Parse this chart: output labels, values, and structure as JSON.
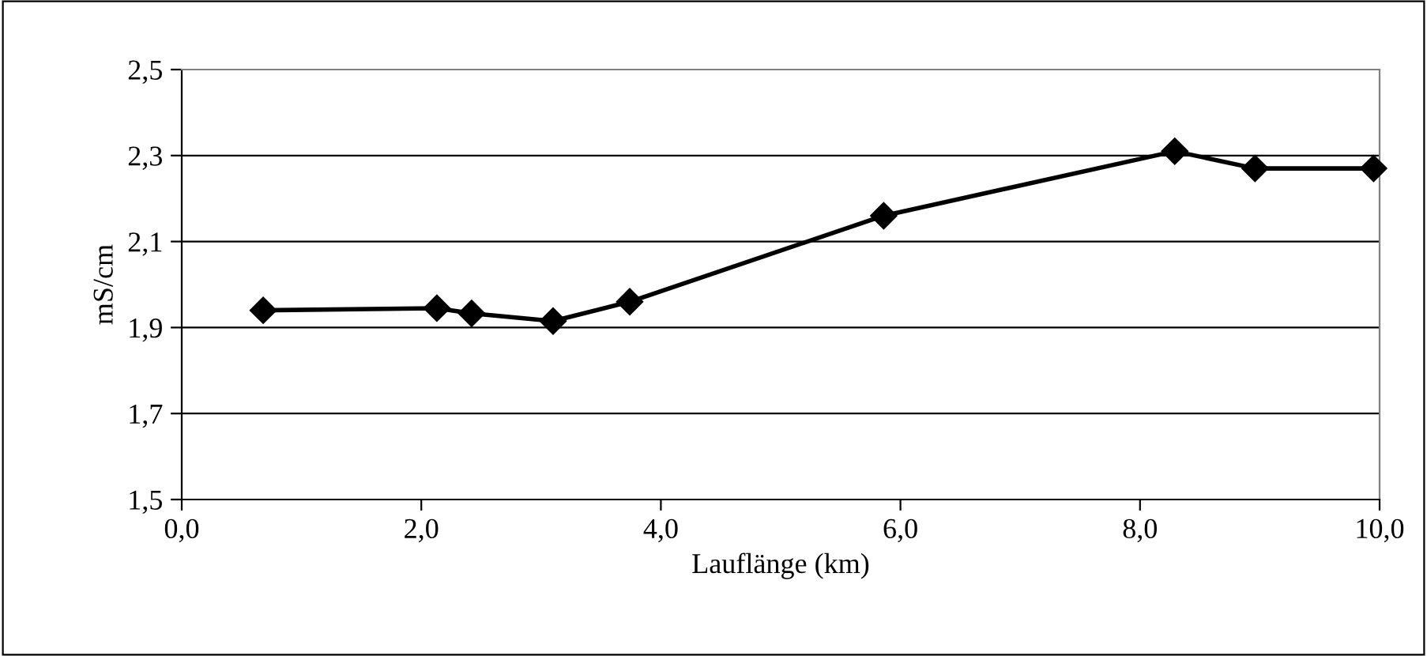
{
  "chart_data": {
    "type": "line",
    "xlabel": "Lauflänge (km)",
    "ylabel": "mS/cm",
    "x": [
      0.68,
      2.13,
      2.42,
      3.1,
      3.74,
      5.86,
      8.29,
      8.96,
      9.95
    ],
    "series": [
      {
        "color": "#000000",
        "values": [
          1.94,
          1.945,
          1.933,
          1.915,
          1.96,
          2.16,
          2.31,
          2.27,
          2.27
        ]
      }
    ],
    "xlim": [
      0,
      10
    ],
    "xticks": [
      {
        "value": 0,
        "label": "0,0"
      },
      {
        "value": 2,
        "label": "2,0"
      },
      {
        "value": 4,
        "label": "4,0"
      },
      {
        "value": 6,
        "label": "6,0"
      },
      {
        "value": 8,
        "label": "8,0"
      },
      {
        "value": 10,
        "label": "10,0"
      }
    ],
    "ylim": [
      1.5,
      2.5
    ],
    "yticks": [
      {
        "value": 1.5,
        "label": "1,5"
      },
      {
        "value": 1.7,
        "label": "1,7"
      },
      {
        "value": 1.9,
        "label": "1,9"
      },
      {
        "value": 2.1,
        "label": "2,1"
      },
      {
        "value": 2.3,
        "label": "2,3"
      },
      {
        "value": 2.5,
        "label": "2,5"
      }
    ],
    "grid": "y",
    "marker": "diamond",
    "line_style": "solid"
  }
}
